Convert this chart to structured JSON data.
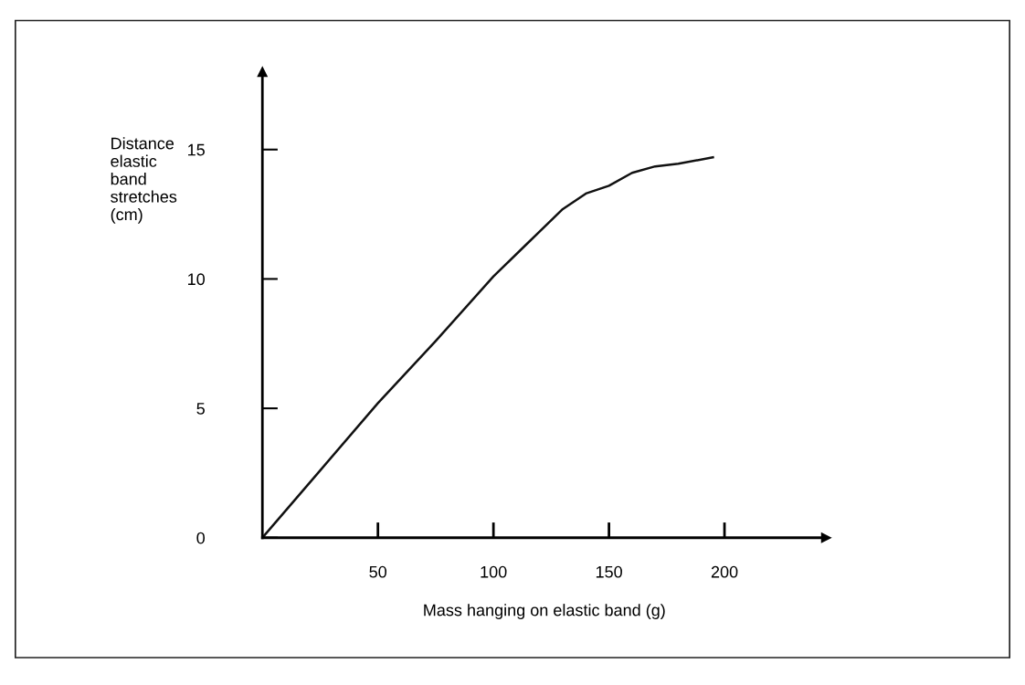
{
  "chart_data": {
    "type": "line",
    "xlabel": "Mass hanging on elastic band (g)",
    "ylabel": "Distance\nelastic\nband\nstretches\n(cm)",
    "x": [
      0,
      25,
      50,
      75,
      100,
      115,
      130,
      140,
      150,
      160,
      170,
      180,
      195
    ],
    "series": [
      {
        "color": "#111111",
        "values": [
          0,
          2.6,
          5.2,
          7.6,
          10.1,
          11.4,
          12.7,
          13.3,
          13.6,
          14.1,
          14.35,
          14.45,
          14.7
        ]
      }
    ],
    "xlim": [
      0,
      244
    ],
    "ylim": [
      0,
      18
    ],
    "xticks": [
      50,
      100,
      150,
      200
    ],
    "yticks": [
      0,
      5,
      10,
      15
    ],
    "grid": false,
    "legend": false,
    "marker": "none",
    "line_style": "solid"
  }
}
